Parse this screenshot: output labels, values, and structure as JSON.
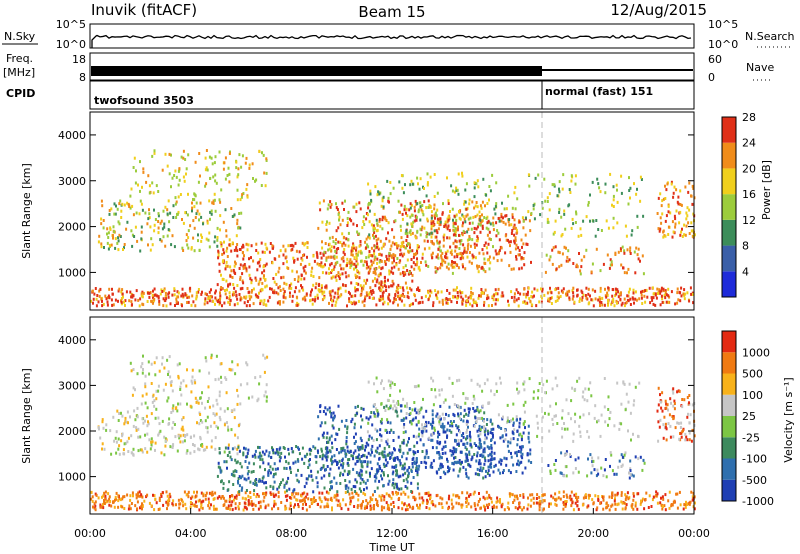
{
  "header": {
    "title": "Inuvik (fitACF)",
    "beam": "Beam 15",
    "date": "12/Aug/2015"
  },
  "panels": {
    "nsky": {
      "label": "N.Sky",
      "ticks": [
        "10^5",
        "10^0"
      ],
      "right_label": "N.Search",
      "right_ticks": [
        "10^5",
        "10^0"
      ]
    },
    "freq": {
      "label_top": "Freq.",
      "label_bottom": "[MHz]",
      "ticks": [
        "18",
        "8"
      ],
      "right_label": "Nave",
      "right_ticks": [
        "60",
        "0"
      ]
    },
    "cpid": {
      "label": "CPID",
      "modes": [
        {
          "name": "twofsound 3503",
          "start_hour": 0
        },
        {
          "name": "normal (fast) 151",
          "start_hour": 18.0
        }
      ]
    }
  },
  "chart_data": [
    {
      "type": "heatmap",
      "title": "",
      "ylabel": "Slant Range [km]",
      "xlabel": "",
      "ylim": [
        180,
        4500
      ],
      "yticks": [
        "1000",
        "2000",
        "3000",
        "4000"
      ],
      "colorbar": {
        "label": "Power [dB]",
        "ticks": [
          "4",
          "8",
          "12",
          "16",
          "20",
          "24",
          "28"
        ],
        "colors": [
          "#1e2bd9",
          "#3a5fa8",
          "#3c8d5a",
          "#9ccc3c",
          "#f0cf1c",
          "#f08c1a",
          "#e03018"
        ]
      }
    },
    {
      "type": "heatmap",
      "title": "",
      "ylabel": "Slant Range [km]",
      "xlabel": "Time UT",
      "ylim": [
        180,
        4500
      ],
      "yticks": [
        "1000",
        "2000",
        "3000",
        "4000"
      ],
      "xticks": [
        "00:00",
        "04:00",
        "08:00",
        "12:00",
        "16:00",
        "20:00",
        "00:00"
      ],
      "xlim_hours": [
        0,
        24
      ],
      "colorbar": {
        "label": "Velocity [m s⁻¹]",
        "ticks": [
          "1000",
          "500",
          "100",
          "25",
          "-25",
          "-100",
          "-500",
          "-1000"
        ],
        "colors": [
          "#1f3fb3",
          "#2f6fae",
          "#3d8a5e",
          "#7cc644",
          "#c6c6c6",
          "#f8b21b",
          "#f07a12",
          "#e32a12"
        ]
      }
    }
  ]
}
